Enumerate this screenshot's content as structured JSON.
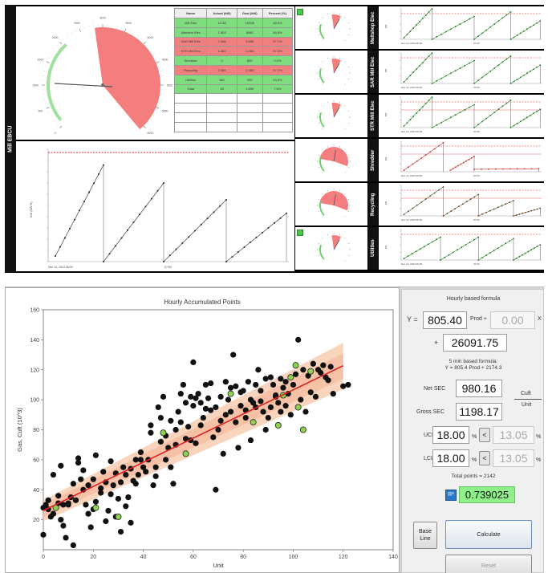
{
  "top_dashboard": {
    "main_panel_label": "Mill EBCU",
    "gauge_ticks": [
      "0",
      "500",
      "1000",
      "1500",
      "2000",
      "2500",
      "3000",
      "3500",
      "4000",
      "4500",
      "5000",
      "5500",
      "6000"
    ],
    "table_headers": [
      "Name",
      "Actual (kW)",
      "Goal (kW)",
      "Percent (%)"
    ],
    "table_rows": [
      {
        "name": "Mill Elec",
        "actual": "12.58",
        "goal": "10008",
        "pct": "48.5%"
      },
      {
        "name": "Machine Elec",
        "actual": "1.803",
        "goal": "5080",
        "pct": "48.5%"
      },
      {
        "name": "SAR Mill Elec",
        "actual": "2.456",
        "goal": "3.560",
        "pct": "47.1%"
      },
      {
        "name": "STR Mill Elec",
        "actual": "1.462",
        "goal": "1.060",
        "pct": "47.4%"
      },
      {
        "name": "Shredder",
        "actual": "0",
        "goal": "800",
        "pct": "0.0%"
      },
      {
        "name": "Recycling",
        "actual": "2.456",
        "goal": "2.460",
        "pct": "47.1%"
      },
      {
        "name": "Utilities",
        "actual": "382",
        "goal": "900",
        "pct": "43.4%"
      },
      {
        "name": "Total",
        "actual": "18",
        "goal": "1.890",
        "pct": "7.6%"
      }
    ],
    "big_chart": {
      "ylabel": "kW (kW*h)",
      "x_tick_left": "Dec 14, 2013 06:00",
      "x_tick_mid": "07:00"
    },
    "section_labels": [
      "Meltshop Elec",
      "SAR Mill Elec",
      "STR Mill Elec",
      "Shredder",
      "Recycling",
      "Utilities"
    ],
    "mini_chart_x_left": "Dec 14, 2013 06:00",
    "mini_chart_x_mid": "07:00",
    "mini_chart_ylabel": "kW"
  },
  "chart": {
    "title": "Hourly Accumulated Points",
    "xlabel": "Unit",
    "ylabel": "Gas, Cuft (10^3)"
  },
  "chart_data": {
    "type": "scatter",
    "title": "Hourly Accumulated Points",
    "xlabel": "Unit",
    "ylabel": "Gas, Cuft (10^3)",
    "xlim": [
      0,
      140
    ],
    "ylim": [
      0,
      160
    ],
    "xticks": [
      0,
      20,
      40,
      60,
      80,
      100,
      120,
      140
    ],
    "yticks": [
      20,
      40,
      60,
      80,
      100,
      120,
      140,
      160
    ],
    "regression_line": {
      "x": [
        0,
        120
      ],
      "y": [
        26.1,
        122.7
      ]
    },
    "band_upper": {
      "x": [
        0,
        120
      ],
      "y": [
        33,
        138
      ]
    },
    "band_lower": {
      "x": [
        0,
        120
      ],
      "y": [
        19,
        107
      ]
    },
    "colors": {
      "points": "#111111",
      "highlight": "#8fd14f",
      "line": "#e02020",
      "band": "#f7c7a8"
    },
    "series": [
      {
        "points": [
          [
            0,
            10
          ],
          [
            0,
            28
          ],
          [
            1,
            30
          ],
          [
            2,
            27
          ],
          [
            3,
            22
          ],
          [
            4,
            50
          ],
          [
            5,
            28
          ],
          [
            6,
            31
          ],
          [
            7,
            56
          ],
          [
            7,
            20
          ],
          [
            8,
            30
          ],
          [
            9,
            8
          ],
          [
            10,
            30
          ],
          [
            11,
            35
          ],
          [
            12,
            3
          ],
          [
            13,
            33
          ],
          [
            14,
            58
          ],
          [
            15,
            47
          ],
          [
            16,
            40
          ],
          [
            17,
            30
          ],
          [
            18,
            24
          ],
          [
            19,
            15
          ],
          [
            20,
            47
          ],
          [
            21,
            32
          ],
          [
            21,
            63
          ],
          [
            23,
            38
          ],
          [
            24,
            52
          ],
          [
            25,
            45
          ],
          [
            26,
            26
          ],
          [
            27,
            59
          ],
          [
            28,
            43
          ],
          [
            29,
            51
          ],
          [
            30,
            34
          ],
          [
            31,
            12
          ],
          [
            32,
            55
          ],
          [
            33,
            50
          ],
          [
            34,
            35
          ],
          [
            35,
            18
          ],
          [
            36,
            46
          ],
          [
            37,
            60
          ],
          [
            38,
            50
          ],
          [
            39,
            65
          ],
          [
            40,
            55
          ],
          [
            42,
            60
          ],
          [
            43,
            78
          ],
          [
            44,
            43
          ],
          [
            45,
            55
          ],
          [
            46,
            95
          ],
          [
            47,
            88
          ],
          [
            48,
            102
          ],
          [
            49,
            76
          ],
          [
            50,
            68
          ],
          [
            51,
            55
          ],
          [
            52,
            44
          ],
          [
            53,
            80
          ],
          [
            54,
            92
          ],
          [
            55,
            85
          ],
          [
            56,
            110
          ],
          [
            57,
            74
          ],
          [
            58,
            82
          ],
          [
            59,
            102
          ],
          [
            60,
            96
          ],
          [
            60,
            125
          ],
          [
            61,
            71
          ],
          [
            62,
            104
          ],
          [
            63,
            98
          ],
          [
            64,
            88
          ],
          [
            65,
            110
          ],
          [
            66,
            101
          ],
          [
            67,
            93
          ],
          [
            68,
            75
          ],
          [
            69,
            40
          ],
          [
            70,
            80
          ],
          [
            71,
            102
          ],
          [
            72,
            64
          ],
          [
            73,
            90
          ],
          [
            74,
            100
          ],
          [
            75,
            108
          ],
          [
            76,
            130
          ],
          [
            77,
            85
          ],
          [
            78,
            68
          ],
          [
            79,
            96
          ],
          [
            80,
            106
          ],
          [
            81,
            88
          ],
          [
            82,
            112
          ],
          [
            83,
            73
          ],
          [
            84,
            98
          ],
          [
            85,
            95
          ],
          [
            86,
            120
          ],
          [
            87,
            106
          ],
          [
            88,
            92
          ],
          [
            89,
            114
          ],
          [
            90,
            88
          ],
          [
            91,
            115
          ],
          [
            92,
            110
          ],
          [
            93,
            103
          ],
          [
            94,
            98
          ],
          [
            95,
            114
          ],
          [
            96,
            108
          ],
          [
            97,
            96
          ],
          [
            98,
            104
          ],
          [
            99,
            90
          ],
          [
            100,
            110
          ],
          [
            101,
            117
          ],
          [
            102,
            140
          ],
          [
            103,
            100
          ],
          [
            104,
            120
          ],
          [
            105,
            92
          ],
          [
            106,
            116
          ],
          [
            107,
            105
          ],
          [
            108,
            124
          ],
          [
            109,
            102
          ],
          [
            110,
            120
          ],
          [
            111,
            118
          ],
          [
            112,
            123
          ],
          [
            113,
            115
          ],
          [
            114,
            113
          ],
          [
            115,
            122
          ],
          [
            116,
            104
          ],
          [
            120,
            109
          ],
          [
            122,
            110
          ],
          [
            97,
            112
          ],
          [
            95,
            92
          ],
          [
            93,
            102
          ],
          [
            91,
            95
          ],
          [
            89,
            80
          ],
          [
            87,
            99
          ],
          [
            85,
            110
          ],
          [
            83,
            100
          ],
          [
            81,
            93
          ],
          [
            79,
            105
          ],
          [
            77,
            109
          ],
          [
            75,
            92
          ],
          [
            73,
            112
          ],
          [
            71,
            86
          ],
          [
            69,
            95
          ],
          [
            67,
            111
          ],
          [
            65,
            94
          ],
          [
            63,
            83
          ],
          [
            61,
            101
          ],
          [
            59,
            73
          ],
          [
            57,
            98
          ],
          [
            55,
            104
          ],
          [
            53,
            70
          ],
          [
            51,
            86
          ],
          [
            49,
            60
          ],
          [
            47,
            72
          ],
          [
            45,
            49
          ],
          [
            43,
            83
          ],
          [
            41,
            52
          ],
          [
            39,
            60
          ],
          [
            37,
            44
          ],
          [
            35,
            54
          ],
          [
            33,
            29
          ],
          [
            31,
            45
          ],
          [
            29,
            22
          ],
          [
            27,
            37
          ],
          [
            25,
            19
          ],
          [
            23,
            41
          ],
          [
            20,
            27
          ],
          [
            18,
            43
          ],
          [
            16,
            53
          ],
          [
            14,
            61
          ],
          [
            12,
            44
          ],
          [
            10,
            31
          ],
          [
            8,
            16
          ],
          [
            6,
            36
          ],
          [
            4,
            24
          ],
          [
            2,
            33
          ]
        ]
      },
      {
        "points": [
          [
            5,
            28
          ],
          [
            21,
            28
          ],
          [
            30,
            22
          ],
          [
            48,
            78
          ],
          [
            57,
            64
          ],
          [
            75,
            104
          ],
          [
            84,
            85
          ],
          [
            94,
            83
          ],
          [
            96,
            103
          ],
          [
            99,
            115
          ],
          [
            101,
            123
          ],
          [
            102,
            95
          ],
          [
            104,
            80
          ],
          [
            107,
            119
          ]
        ]
      }
    ]
  },
  "formula_panel": {
    "hourly_title": "Hourly based formula",
    "y_label": "Y =",
    "y_value": "805.40",
    "prod_label": "Prod +",
    "prod_value": "0.00",
    "x_suffix": "X",
    "plus_label": "+",
    "intercept_value": "26091.75",
    "five_min_line1": "5 min based formula:",
    "five_min_line2": "Y = 805.4 Prod + 2174.3",
    "net_sec_label": "Net SEC",
    "net_sec_value": "980.16",
    "gross_sec_label": "Gross SEC",
    "gross_sec_value": "1198.17",
    "unit_top": "Cuft",
    "unit_bottom": "Unit",
    "ucl_label": "UCL",
    "ucl_value": "18.00",
    "ucl_pct": "%",
    "ucl_btn": "<",
    "ucl_result": "13.05",
    "ucl_result_pct": "%",
    "lcl_label": "LCL",
    "lcl_value": "18.00",
    "lcl_pct": "%",
    "lcl_btn": "<",
    "lcl_result": "13.05",
    "lcl_result_pct": "%",
    "total_points": "Total points = 2142",
    "r2_icon_label": "R²",
    "r2_value": "0.739025",
    "baseline_btn_line1": "Base",
    "baseline_btn_line2": "Line",
    "calculate_btn": "Calculate",
    "reset_btn": "Reset"
  }
}
